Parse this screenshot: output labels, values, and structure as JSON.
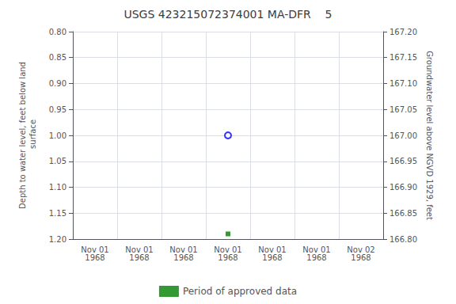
{
  "chart_data": {
    "type": "scatter",
    "title": "USGS 423215072374001 MA-DFR    5",
    "ylabel": "Depth to water level, feet below land\n surface",
    "y2label": "Groundwater level above NGVD 1929, feet",
    "categories": [
      "Nov 01\n1968",
      "Nov 01\n1968",
      "Nov 01\n1968",
      "Nov 01\n1968",
      "Nov 01\n1968",
      "Nov 01\n1968",
      "Nov 02\n1968"
    ],
    "series": [
      {
        "color": "blue",
        "marker": "emptyCircle",
        "values": [
          null,
          null,
          null,
          1.0,
          null,
          null,
          null
        ]
      },
      {
        "name": "Period of approved data",
        "color": "#008000",
        "marker": "square",
        "values": [
          null,
          null,
          null,
          1.19,
          null,
          null,
          null
        ]
      }
    ],
    "ylim": [
      1.2,
      0.8
    ],
    "yticks": [
      {
        "value": 0.8,
        "label": "0.80"
      },
      0.85,
      {
        "value": 0.9,
        "label": "0.90"
      },
      0.95,
      {
        "value": 1.0,
        "label": "1.00"
      },
      1.05,
      {
        "value": 1.1,
        "label": "1.10"
      },
      1.15,
      {
        "value": 1.2,
        "label": "1.20"
      }
    ],
    "y2lim": [
      166.8,
      167.2
    ],
    "y2ticks": [
      {
        "value": 166.8,
        "label": "166.80"
      },
      166.85,
      {
        "value": 166.9,
        "label": "166.90"
      },
      166.95,
      {
        "value": 167.0,
        "label": "167.00"
      },
      167.05,
      {
        "value": 167.1,
        "label": "167.10"
      },
      167.15,
      {
        "value": 167.2,
        "label": "167.20"
      }
    ],
    "grid": true,
    "legend": "bottom"
  }
}
